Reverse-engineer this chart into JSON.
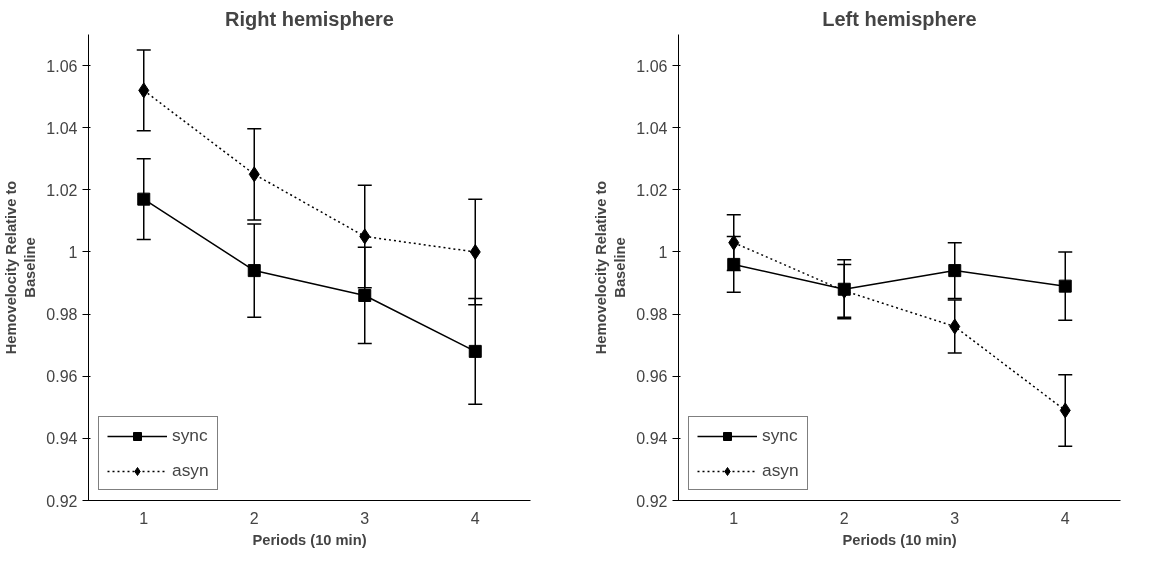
{
  "chart_data": [
    {
      "type": "line",
      "title": "Right hemisphere",
      "xlabel": "Periods (10 min)",
      "ylabel": "Hemovelocity Relative to Baseline",
      "x": [
        1,
        2,
        3,
        4
      ],
      "xlim": [
        0.5,
        4.5
      ],
      "xticks": [
        1,
        2,
        3,
        4
      ],
      "ylim": [
        0.92,
        1.07
      ],
      "yticks": [
        0.92,
        0.94,
        0.96,
        0.98,
        1,
        1.02,
        1.04,
        1.06
      ],
      "grid": false,
      "legend": "bottom left",
      "series": [
        {
          "name": "sync",
          "color": "#000000",
          "marker": "square",
          "line_style": "solid",
          "values": [
            1.017,
            0.994,
            0.986,
            0.968
          ],
          "errors": [
            0.013,
            0.015,
            0.0155,
            0.017
          ]
        },
        {
          "name": "asyn",
          "color": "#000000",
          "marker": "diamond",
          "line_style": "dotted",
          "values": [
            1.052,
            1.025,
            1.005,
            1.0
          ],
          "errors": [
            0.013,
            0.0147,
            0.0165,
            0.017
          ]
        }
      ]
    },
    {
      "type": "line",
      "title": "Left hemisphere",
      "xlabel": "Periods (10 min)",
      "ylabel": "Hemovelocity Relative to Baseline",
      "x": [
        1,
        2,
        3,
        4
      ],
      "xlim": [
        0.5,
        4.5
      ],
      "xticks": [
        1,
        2,
        3,
        4
      ],
      "ylim": [
        0.92,
        1.07
      ],
      "yticks": [
        0.92,
        0.94,
        0.96,
        0.98,
        1,
        1.02,
        1.04,
        1.06
      ],
      "grid": false,
      "legend": "bottom left",
      "series": [
        {
          "name": "sync",
          "color": "#000000",
          "marker": "square",
          "line_style": "solid",
          "values": [
            0.996,
            0.988,
            0.994,
            0.989
          ],
          "errors": [
            0.009,
            0.0095,
            0.009,
            0.011
          ]
        },
        {
          "name": "asyn",
          "color": "#000000",
          "marker": "diamond",
          "line_style": "dotted",
          "values": [
            1.003,
            0.9875,
            0.976,
            0.949
          ],
          "errors": [
            0.009,
            0.0085,
            0.0085,
            0.0115
          ]
        }
      ]
    }
  ]
}
